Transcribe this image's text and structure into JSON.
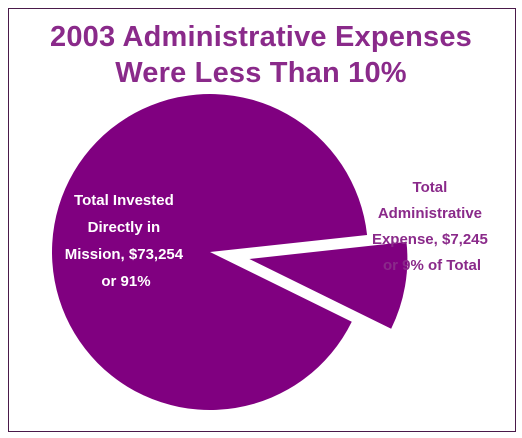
{
  "chart_data": {
    "type": "pie",
    "title": [
      "2003 Administrative Expenses",
      "Were Less Than 10%"
    ],
    "slices": [
      {
        "label_lines": [
          "Total Invested",
          "Directly in",
          "Mission, $73,254",
          "or 91%"
        ],
        "value": 73254,
        "percent": 91,
        "exploded": false
      },
      {
        "label_lines": [
          "Total",
          "Administrative",
          "Expense, $7,245",
          "or 9% of Total"
        ],
        "value": 7245,
        "percent": 9,
        "exploded": true
      }
    ],
    "colors": {
      "slice": "#800080",
      "inner_label": "#ffffff",
      "outer_label": "#8a2a8a",
      "title": "#8a2a8a"
    }
  }
}
